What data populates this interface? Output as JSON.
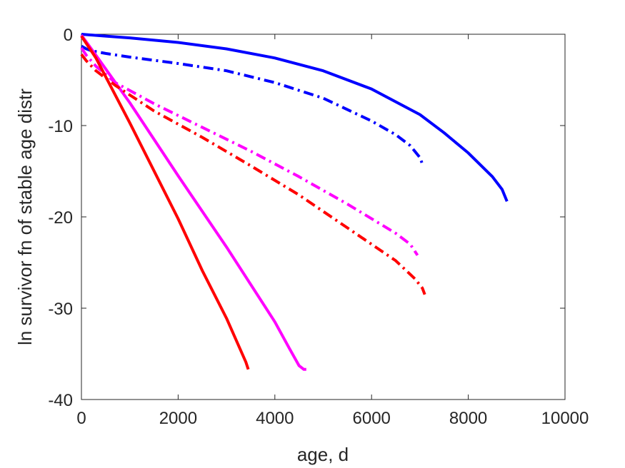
{
  "chart_data": {
    "type": "line",
    "title": "",
    "xlabel": "age, d",
    "ylabel": "ln survivor fn of stable age distr",
    "xlim": [
      0,
      10000
    ],
    "ylim": [
      -40,
      0
    ],
    "xticks": [
      0,
      2000,
      4000,
      6000,
      8000,
      10000
    ],
    "yticks": [
      -40,
      -30,
      -20,
      -10,
      0
    ],
    "xtick_labels": [
      "0",
      "2000",
      "4000",
      "6000",
      "8000",
      "10000"
    ],
    "ytick_labels": [
      "-40",
      "-30",
      "-20",
      "-10",
      "0"
    ],
    "grid": false,
    "legend": "none",
    "series": [
      {
        "color": "#0000ff",
        "style": "solid",
        "x": [
          0,
          500,
          1000,
          2000,
          3000,
          4000,
          5000,
          6000,
          7000,
          7500,
          8000,
          8500,
          8700,
          8800
        ],
        "y": [
          0,
          -0.2,
          -0.4,
          -0.9,
          -1.6,
          -2.6,
          -4.0,
          -6.0,
          -8.8,
          -10.8,
          -13.0,
          -15.6,
          -17.0,
          -18.3
        ]
      },
      {
        "color": "#0000ff",
        "style": "dashdot",
        "x": [
          0,
          100,
          200,
          500,
          1000,
          2000,
          3000,
          4000,
          5000,
          6000,
          6500,
          6800,
          7000,
          7050
        ],
        "y": [
          -1.3,
          -1.6,
          -1.8,
          -2.1,
          -2.5,
          -3.2,
          -4.0,
          -5.3,
          -7.0,
          -9.5,
          -11.0,
          -12.2,
          -13.5,
          -14.2
        ]
      },
      {
        "color": "#ff00ff",
        "style": "solid",
        "x": [
          0,
          300,
          1000,
          2000,
          3000,
          4000,
          4300,
          4500,
          4600,
          4650
        ],
        "y": [
          -0.1,
          -2.3,
          -7.5,
          -15.5,
          -23.3,
          -31.5,
          -34.4,
          -36.3,
          -36.7,
          -36.7
        ]
      },
      {
        "color": "#ff00ff",
        "style": "dashdot",
        "x": [
          0,
          100,
          300,
          700,
          1500,
          2500,
          3500,
          4500,
          5500,
          6500,
          6800,
          6950
        ],
        "y": [
          -1.5,
          -2.3,
          -3.5,
          -5.3,
          -7.6,
          -10.2,
          -12.8,
          -15.6,
          -18.6,
          -21.8,
          -23.0,
          -24.2
        ]
      },
      {
        "color": "#ff0000",
        "style": "solid",
        "x": [
          0,
          300,
          1000,
          2000,
          2500,
          3000,
          3400,
          3450
        ],
        "y": [
          -0.2,
          -2.6,
          -9.7,
          -20.2,
          -25.9,
          -31.1,
          -35.9,
          -36.7
        ]
      },
      {
        "color": "#ff0000",
        "style": "dashdot",
        "x": [
          0,
          100,
          300,
          700,
          1500,
          2500,
          3500,
          4500,
          5500,
          6500,
          6900,
          7050,
          7100
        ],
        "y": [
          -2.2,
          -2.9,
          -4.0,
          -5.6,
          -8.4,
          -11.3,
          -14.4,
          -17.6,
          -21.2,
          -24.8,
          -26.8,
          -27.8,
          -28.5
        ]
      }
    ]
  }
}
